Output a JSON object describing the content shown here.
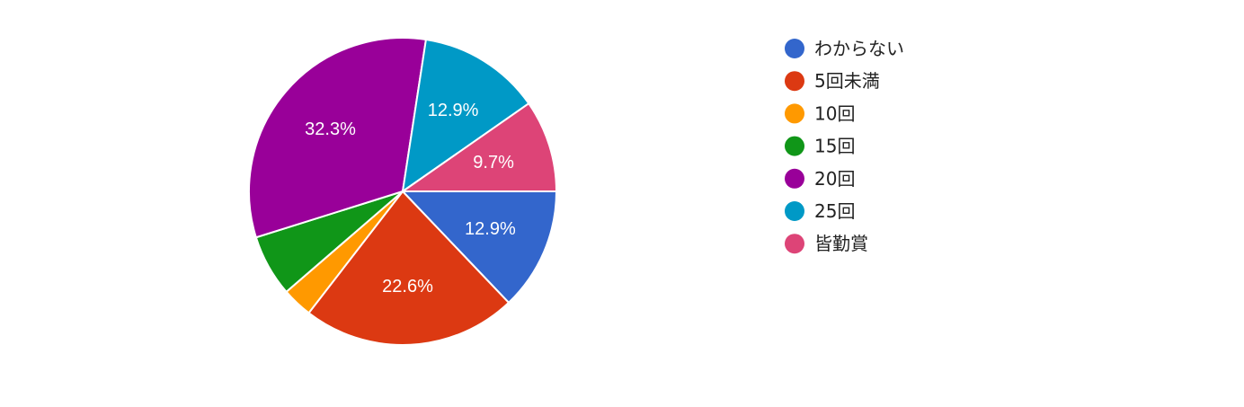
{
  "chart_data": {
    "type": "pie",
    "title": "",
    "legend_position": "right",
    "slices": [
      {
        "label": "わからない",
        "value": 12.9,
        "display": "12.9%",
        "color": "#3366cc"
      },
      {
        "label": "5回未満",
        "value": 22.6,
        "display": "22.6%",
        "color": "#dc3912"
      },
      {
        "label": "10回",
        "value": 3.2,
        "display": "",
        "color": "#ff9900"
      },
      {
        "label": "15回",
        "value": 6.5,
        "display": "",
        "color": "#109618"
      },
      {
        "label": "20回",
        "value": 32.3,
        "display": "32.3%",
        "color": "#990099"
      },
      {
        "label": "25回",
        "value": 12.9,
        "display": "12.9%",
        "color": "#0099c6"
      },
      {
        "label": "皆勤賞",
        "value": 9.7,
        "display": "9.7%",
        "color": "#dd4477"
      }
    ]
  }
}
